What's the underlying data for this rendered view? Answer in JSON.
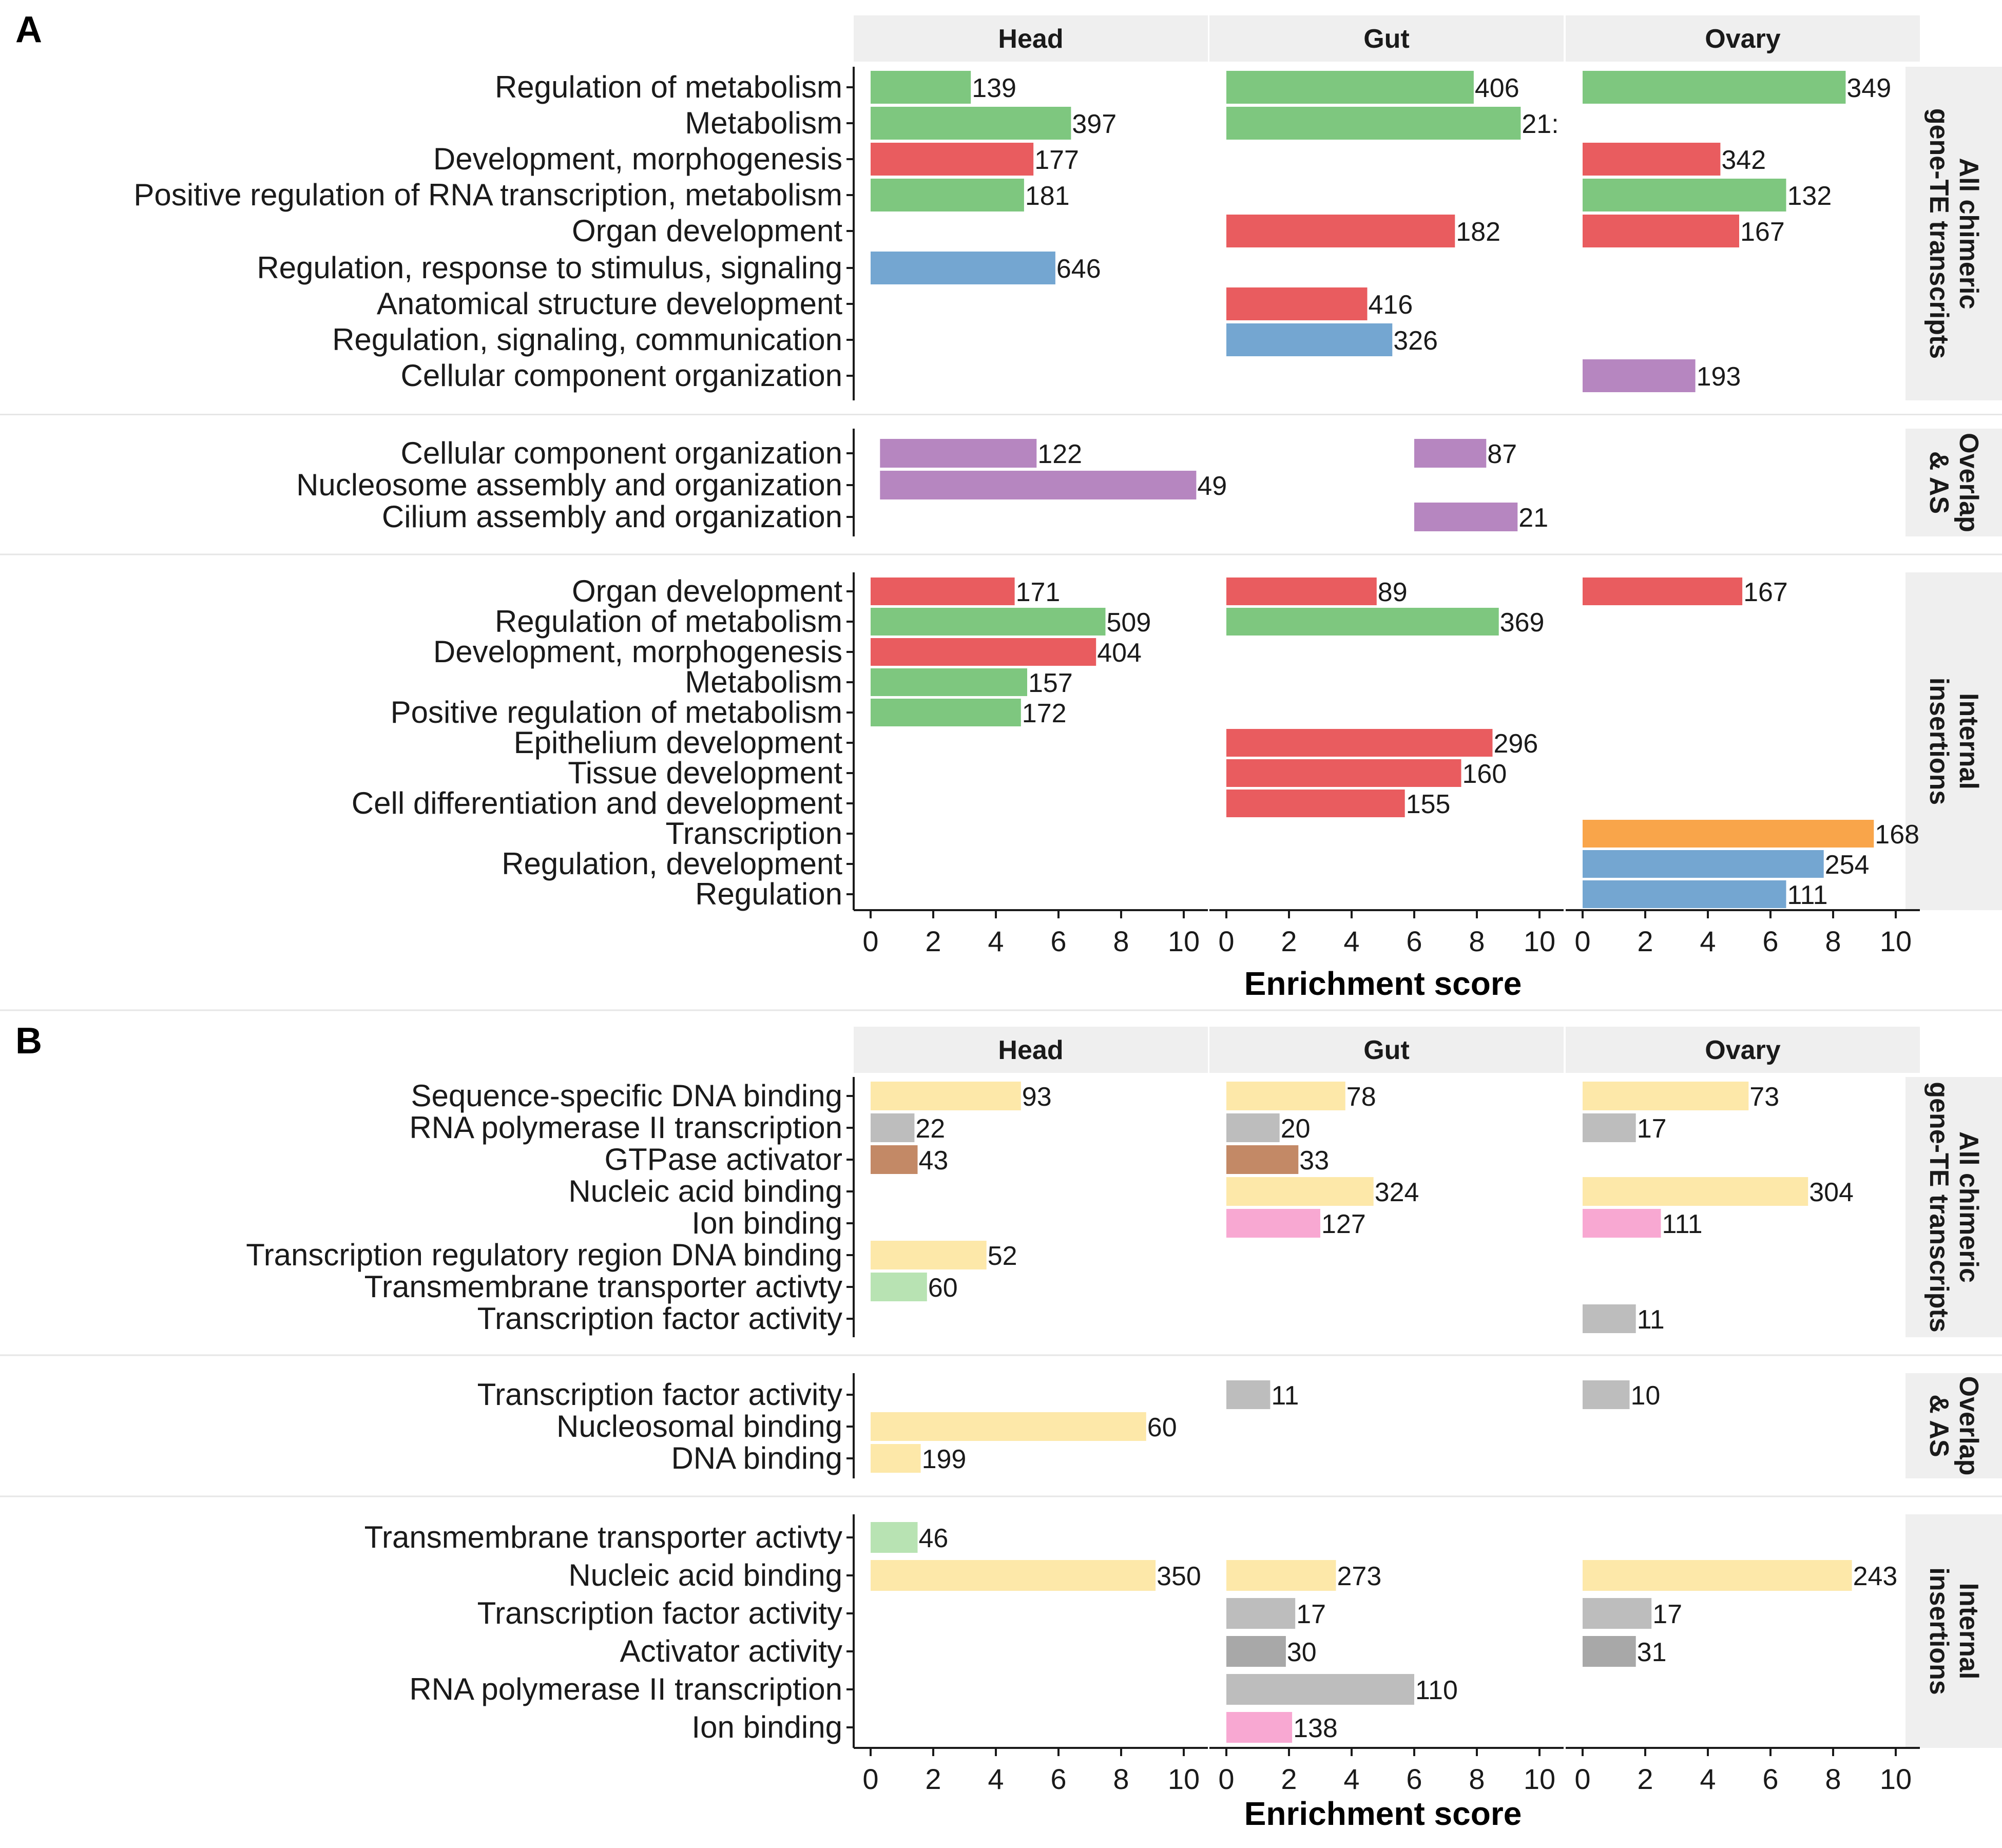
{
  "chart_data": [
    {
      "panel_label": "A",
      "type": "bar",
      "orientation": "horizontal",
      "facets": [
        "Head",
        "Gut",
        "Ovary"
      ],
      "xlabel": "Enrichment score",
      "xlim": [
        0,
        10
      ],
      "xticks": [
        0,
        2,
        4,
        6,
        8,
        10
      ],
      "grid": false,
      "legend": "none",
      "colors": {
        "development": "#e95c5f",
        "metabolism": "#7ec77f",
        "regulation": "#74a6d1",
        "organization": "#b686c0",
        "transcription": "#f9a54a"
      },
      "row_groups": [
        {
          "name": "All chimeric gene-TE transcripts",
          "categories": [
            "Regulation of metabolism",
            "Metabolism",
            "Development, morphogenesis",
            "Positive regulation of RNA transcription, metabolism",
            "Organ development",
            "Regulation, response to stimulus, signaling",
            "Anatomical structure development",
            "Regulation, signaling, communication",
            "Cellular component organization"
          ],
          "bars": [
            {
              "category": "Regulation of metabolism",
              "facet": "Head",
              "x": 3.2,
              "count": "139",
              "color": "#7ec77f"
            },
            {
              "category": "Regulation of metabolism",
              "facet": "Gut",
              "x": 7.9,
              "count": "406",
              "color": "#7ec77f"
            },
            {
              "category": "Regulation of metabolism",
              "facet": "Ovary",
              "x": 8.4,
              "count": "349",
              "color": "#7ec77f"
            },
            {
              "category": "Metabolism",
              "facet": "Head",
              "x": 6.4,
              "count": "397",
              "color": "#7ec77f"
            },
            {
              "category": "Metabolism",
              "facet": "Gut",
              "x": 9.4,
              "count": "21:",
              "color": "#7ec77f"
            },
            {
              "category": "Development, morphogenesis",
              "facet": "Head",
              "x": 5.2,
              "count": "177",
              "color": "#e95c5f"
            },
            {
              "category": "Development, morphogenesis",
              "facet": "Ovary",
              "x": 4.4,
              "count": "342",
              "color": "#e95c5f"
            },
            {
              "category": "Positive regulation of RNA transcription, metabolism",
              "facet": "Head",
              "x": 4.9,
              "count": "181",
              "color": "#7ec77f"
            },
            {
              "category": "Positive regulation of RNA transcription, metabolism",
              "facet": "Ovary",
              "x": 6.5,
              "count": "132",
              "color": "#7ec77f"
            },
            {
              "category": "Organ development",
              "facet": "Gut",
              "x": 7.3,
              "count": "182",
              "color": "#e95c5f"
            },
            {
              "category": "Organ development",
              "facet": "Ovary",
              "x": 5.0,
              "count": "167",
              "color": "#e95c5f"
            },
            {
              "category": "Regulation, response to stimulus, signaling",
              "facet": "Head",
              "x": 5.9,
              "count": "646",
              "color": "#74a6d1"
            },
            {
              "category": "Anatomical structure development",
              "facet": "Gut",
              "x": 4.5,
              "count": "416",
              "color": "#e95c5f"
            },
            {
              "category": "Regulation, signaling, communication",
              "facet": "Gut",
              "x": 5.3,
              "count": "326",
              "color": "#74a6d1"
            },
            {
              "category": "Cellular component organization",
              "facet": "Ovary",
              "x": 3.6,
              "count": "193",
              "color": "#b686c0"
            }
          ]
        },
        {
          "name": "Overlap & AS",
          "categories": [
            "Cellular component organization",
            "Nucleosome assembly and organization",
            "Cilium assembly and organization"
          ],
          "bars": [
            {
              "category": "Cellular component organization",
              "facet": "Head",
              "x0": 0.3,
              "x": 5.3,
              "count": "122",
              "color": "#b686c0"
            },
            {
              "category": "Cellular component organization",
              "facet": "Gut",
              "x0": 6.0,
              "x": 8.3,
              "count": "87",
              "color": "#b686c0"
            },
            {
              "category": "Nucleosome assembly and organization",
              "facet": "Head",
              "x0": 0.3,
              "x": 10.4,
              "count": "49",
              "color": "#b686c0"
            },
            {
              "category": "Cilium assembly and organization",
              "facet": "Gut",
              "x0": 6.0,
              "x": 9.3,
              "count": "21",
              "color": "#b686c0"
            }
          ]
        },
        {
          "name": "Internal insertions",
          "categories": [
            "Organ development",
            "Regulation of metabolism",
            "Development, morphogenesis",
            "Metabolism",
            "Positive regulation of metabolism",
            "Epithelium development",
            "Tissue development",
            "Cell differentiation and development",
            "Transcription",
            "Regulation, development",
            "Regulation"
          ],
          "bars": [
            {
              "category": "Organ development",
              "facet": "Head",
              "x": 4.6,
              "count": "171",
              "color": "#e95c5f"
            },
            {
              "category": "Organ development",
              "facet": "Gut",
              "x": 4.8,
              "count": "89",
              "color": "#e95c5f"
            },
            {
              "category": "Organ development",
              "facet": "Ovary",
              "x": 5.1,
              "count": "167",
              "color": "#e95c5f"
            },
            {
              "category": "Regulation of metabolism",
              "facet": "Head",
              "x": 7.5,
              "count": "509",
              "color": "#7ec77f"
            },
            {
              "category": "Regulation of metabolism",
              "facet": "Gut",
              "x": 8.7,
              "count": "369",
              "color": "#7ec77f"
            },
            {
              "category": "Development, morphogenesis",
              "facet": "Head",
              "x": 7.2,
              "count": "404",
              "color": "#e95c5f"
            },
            {
              "category": "Metabolism",
              "facet": "Head",
              "x": 5.0,
              "count": "157",
              "color": "#7ec77f"
            },
            {
              "category": "Positive regulation of metabolism",
              "facet": "Head",
              "x": 4.8,
              "count": "172",
              "color": "#7ec77f"
            },
            {
              "category": "Epithelium development",
              "facet": "Gut",
              "x": 8.5,
              "count": "296",
              "color": "#e95c5f"
            },
            {
              "category": "Tissue development",
              "facet": "Gut",
              "x": 7.5,
              "count": "160",
              "color": "#e95c5f"
            },
            {
              "category": "Cell differentiation and development",
              "facet": "Gut",
              "x": 5.7,
              "count": "155",
              "color": "#e95c5f"
            },
            {
              "category": "Transcription",
              "facet": "Ovary",
              "x": 9.3,
              "count": "168",
              "color": "#f9a54a"
            },
            {
              "category": "Regulation, development",
              "facet": "Ovary",
              "x": 7.7,
              "count": "254",
              "color": "#74a6d1"
            },
            {
              "category": "Regulation",
              "facet": "Ovary",
              "x": 6.5,
              "count": "111",
              "color": "#74a6d1"
            }
          ]
        }
      ]
    },
    {
      "panel_label": "B",
      "type": "bar",
      "orientation": "horizontal",
      "facets": [
        "Head",
        "Gut",
        "Ovary"
      ],
      "xlabel": "Enrichment score",
      "xlim": [
        0,
        10
      ],
      "xticks": [
        0,
        2,
        4,
        6,
        8,
        10
      ],
      "grid": false,
      "legend": "none",
      "colors": {
        "binding": "#fde8a9",
        "grey": "#bdbdbd",
        "dark_grey": "#a8a8a8",
        "gtpase": "#c38966",
        "ion": "#f8a8d2",
        "transporter": "#b8e3b3"
      },
      "row_groups": [
        {
          "name": "All chimeric gene-TE transcripts",
          "categories": [
            "Sequence-specific DNA binding",
            "RNA polymerase II transcription",
            "GTPase activator",
            "Nucleic acid binding",
            "Ion binding",
            "Transcription regulatory region DNA binding",
            "Transmembrane transporter activty",
            "Transcription factor activity"
          ],
          "bars": [
            {
              "category": "Sequence-specific DNA binding",
              "facet": "Head",
              "x": 4.8,
              "count": "93",
              "color": "#fde8a9"
            },
            {
              "category": "Sequence-specific DNA binding",
              "facet": "Gut",
              "x": 3.8,
              "count": "78",
              "color": "#fde8a9"
            },
            {
              "category": "Sequence-specific DNA binding",
              "facet": "Ovary",
              "x": 5.3,
              "count": "73",
              "color": "#fde8a9"
            },
            {
              "category": "RNA polymerase II transcription",
              "facet": "Head",
              "x": 1.4,
              "count": "22",
              "color": "#bdbdbd"
            },
            {
              "category": "RNA polymerase II transcription",
              "facet": "Gut",
              "x": 1.7,
              "count": "20",
              "color": "#bdbdbd"
            },
            {
              "category": "RNA polymerase II transcription",
              "facet": "Ovary",
              "x": 1.7,
              "count": "17",
              "color": "#bdbdbd"
            },
            {
              "category": "GTPase activator",
              "facet": "Head",
              "x": 1.5,
              "count": "43",
              "color": "#c38966"
            },
            {
              "category": "GTPase activator",
              "facet": "Gut",
              "x": 2.3,
              "count": "33",
              "color": "#c38966"
            },
            {
              "category": "Nucleic acid binding",
              "facet": "Gut",
              "x": 4.7,
              "count": "324",
              "color": "#fde8a9"
            },
            {
              "category": "Nucleic acid binding",
              "facet": "Ovary",
              "x": 7.2,
              "count": "304",
              "color": "#fde8a9"
            },
            {
              "category": "Ion binding",
              "facet": "Gut",
              "x": 3.0,
              "count": "127",
              "color": "#f8a8d2"
            },
            {
              "category": "Ion binding",
              "facet": "Ovary",
              "x": 2.5,
              "count": "111",
              "color": "#f8a8d2"
            },
            {
              "category": "Transcription regulatory region DNA binding",
              "facet": "Head",
              "x": 3.7,
              "count": "52",
              "color": "#fde8a9"
            },
            {
              "category": "Transmembrane transporter activty",
              "facet": "Head",
              "x": 1.8,
              "count": "60",
              "color": "#b8e3b3"
            },
            {
              "category": "Transcription factor activity",
              "facet": "Ovary",
              "x": 1.7,
              "count": "11",
              "color": "#bdbdbd"
            }
          ]
        },
        {
          "name": "Overlap & AS",
          "categories": [
            "Transcription factor activity",
            "Nucleosomal binding",
            "DNA binding"
          ],
          "bars": [
            {
              "category": "Transcription factor activity",
              "facet": "Gut",
              "x": 1.4,
              "count": "11",
              "color": "#bdbdbd"
            },
            {
              "category": "Transcription factor activity",
              "facet": "Ovary",
              "x": 1.5,
              "count": "10",
              "color": "#bdbdbd"
            },
            {
              "category": "Nucleosomal binding",
              "facet": "Head",
              "x": 8.8,
              "count": "60",
              "color": "#fde8a9"
            },
            {
              "category": "DNA binding",
              "facet": "Head",
              "x": 1.6,
              "count": "199",
              "color": "#fde8a9"
            }
          ]
        },
        {
          "name": "Internal insertions",
          "categories": [
            "Transmembrane transporter activty",
            "Nucleic acid binding",
            "Transcription factor activity",
            "Activator activity",
            "RNA polymerase II transcription",
            "Ion binding"
          ],
          "bars": [
            {
              "category": "Transmembrane transporter activty",
              "facet": "Head",
              "x": 1.5,
              "count": "46",
              "color": "#b8e3b3"
            },
            {
              "category": "Nucleic acid binding",
              "facet": "Head",
              "x": 9.1,
              "count": "350",
              "color": "#fde8a9"
            },
            {
              "category": "Nucleic acid binding",
              "facet": "Gut",
              "x": 3.5,
              "count": "273",
              "color": "#fde8a9"
            },
            {
              "category": "Nucleic acid binding",
              "facet": "Ovary",
              "x": 8.6,
              "count": "243",
              "color": "#fde8a9"
            },
            {
              "category": "Transcription factor activity",
              "facet": "Gut",
              "x": 2.2,
              "count": "17",
              "color": "#bdbdbd"
            },
            {
              "category": "Transcription factor activity",
              "facet": "Ovary",
              "x": 2.2,
              "count": "17",
              "color": "#bdbdbd"
            },
            {
              "category": "Activator activity",
              "facet": "Gut",
              "x": 1.9,
              "count": "30",
              "color": "#a8a8a8"
            },
            {
              "category": "Activator activity",
              "facet": "Ovary",
              "x": 1.7,
              "count": "31",
              "color": "#a8a8a8"
            },
            {
              "category": "RNA polymerase II transcription",
              "facet": "Gut",
              "x": 6.0,
              "count": "110",
              "color": "#bdbdbd"
            },
            {
              "category": "Ion binding",
              "facet": "Gut",
              "x": 2.1,
              "count": "138",
              "color": "#f8a8d2"
            }
          ]
        }
      ]
    }
  ]
}
